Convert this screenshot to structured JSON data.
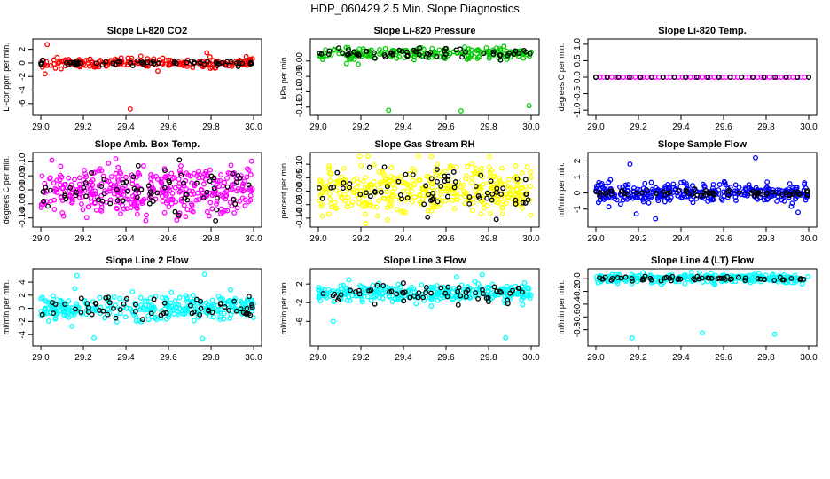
{
  "figure_title": "HDP_060429  2.5 Min. Slope Diagnostics",
  "colors": {
    "red": "#ff0000",
    "green": "#00cc00",
    "magenta": "#ff00ff",
    "yellow": "#ffff00",
    "blue": "#0000ff",
    "cyan": "#00ffff",
    "black": "#000000"
  },
  "chart_data": [
    {
      "type": "scatter",
      "title": "Slope Li-820 CO2",
      "ylabel": "Li-cor ppm per min.",
      "xlim": [
        29.0,
        30.0
      ],
      "xticks": [
        "29.0",
        "29.2",
        "29.4",
        "29.6",
        "29.8",
        "30.0"
      ],
      "ylim": [
        -7.2,
        3.0
      ],
      "yticks": [
        2,
        0,
        -2,
        -4,
        -6
      ],
      "ytick_labels": [
        "2",
        "0",
        "-2",
        "-4",
        "-6"
      ],
      "color": "red",
      "center": 0,
      "noise": 0.35,
      "n": 200,
      "black_n": 60,
      "black_noise": 0.2,
      "outliers": [
        [
          29.03,
          2.7
        ],
        [
          29.02,
          -1.6
        ],
        [
          29.42,
          -6.8
        ],
        [
          29.47,
          1.0
        ],
        [
          29.78,
          1.5
        ],
        [
          29.55,
          -1.2
        ]
      ]
    },
    {
      "type": "scatter",
      "title": "Slope Li-820 Pressure",
      "ylabel": "kPa per min.",
      "xlim": [
        29.0,
        30.0
      ],
      "xticks": [
        "29.0",
        "29.2",
        "29.4",
        "29.6",
        "29.8",
        "30.0"
      ],
      "ylim": [
        -0.165,
        0.06
      ],
      "yticks": [
        0,
        -0.05,
        -0.1,
        -0.15
      ],
      "ytick_labels": [
        "0.00",
        "-0.05",
        "-0.10",
        "-0.15"
      ],
      "color": "green",
      "center": 0.025,
      "noise": 0.01,
      "n": 200,
      "black_n": 60,
      "black_noise": 0.008,
      "outliers": [
        [
          29.33,
          -0.16
        ],
        [
          29.67,
          -0.162
        ],
        [
          29.99,
          -0.145
        ]
      ]
    },
    {
      "type": "scatter",
      "title": "Slope Li-820 Temp.",
      "ylabel": "degrees C per min.",
      "xlim": [
        29.0,
        30.0
      ],
      "xticks": [
        "29.0",
        "29.2",
        "29.4",
        "29.6",
        "29.8",
        "30.0"
      ],
      "ylim": [
        -1.05,
        1.05
      ],
      "yticks": [
        1,
        0.5,
        0,
        -0.5,
        -1
      ],
      "ytick_labels": [
        "1.0",
        "0.5",
        "0.0",
        "-0.5",
        "-1.0"
      ],
      "color": "magenta",
      "center": 0,
      "noise": 0,
      "n": 55,
      "black_n": 20,
      "black_noise": 0,
      "regular": true,
      "outliers": [
        [
          29.0,
          0
        ]
      ]
    },
    {
      "type": "scatter",
      "title": "Slope Amb. Box Temp.",
      "ylabel": "degrees C per min.",
      "xlim": [
        29.0,
        30.0
      ],
      "xticks": [
        "29.0",
        "29.2",
        "29.4",
        "29.6",
        "29.8",
        "30.0"
      ],
      "ylim": [
        -0.12,
        0.12
      ],
      "yticks": [
        0.1,
        0.05,
        0,
        -0.05,
        -0.1
      ],
      "ytick_labels": [
        "0.10",
        "0.05",
        "0.00",
        "-0.05",
        "-0.10"
      ],
      "color": "magenta",
      "center": 0,
      "noise": 0.045,
      "n": 380,
      "black_n": 70,
      "black_noise": 0.04,
      "outliers": []
    },
    {
      "type": "scatter",
      "title": "Slope Gas Stream RH",
      "ylabel": "percent per min.",
      "xlim": [
        29.0,
        30.0
      ],
      "xticks": [
        "29.0",
        "29.2",
        "29.4",
        "29.6",
        "29.8",
        "30.0"
      ],
      "ylim": [
        -0.12,
        0.13
      ],
      "yticks": [
        0.1,
        0.05,
        0,
        -0.05,
        -0.1
      ],
      "ytick_labels": [
        "0.10",
        "0.05",
        "0.00",
        "-0.05",
        "-0.10"
      ],
      "color": "yellow",
      "center": 0,
      "noise": 0.045,
      "n": 380,
      "black_n": 70,
      "black_noise": 0.04,
      "outliers": []
    },
    {
      "type": "scatter",
      "title": "Slope Sample Flow",
      "ylabel": "ml/min per min.",
      "xlim": [
        29.0,
        30.0
      ],
      "xticks": [
        "29.0",
        "29.2",
        "29.4",
        "29.6",
        "29.8",
        "30.0"
      ],
      "ylim": [
        -1.9,
        2.3
      ],
      "yticks": [
        2,
        1,
        0,
        -1
      ],
      "ytick_labels": [
        "2",
        "1",
        "0",
        "-1"
      ],
      "color": "blue",
      "center": 0,
      "noise": 0.3,
      "n": 320,
      "black_n": 70,
      "black_noise": 0.1,
      "outliers": [
        [
          29.16,
          1.8
        ],
        [
          29.75,
          2.2
        ],
        [
          29.28,
          -1.6
        ],
        [
          29.19,
          -1.3
        ],
        [
          29.95,
          -1.2
        ]
      ]
    },
    {
      "type": "scatter",
      "title": "Slope Line 2 Flow",
      "ylabel": "ml/min per min.",
      "xlim": [
        29.0,
        30.0
      ],
      "xticks": [
        "29.0",
        "29.2",
        "29.4",
        "29.6",
        "29.8",
        "30.0"
      ],
      "ylim": [
        -5.2,
        5.5
      ],
      "yticks": [
        4,
        2,
        0,
        -2,
        -4
      ],
      "ytick_labels": [
        "4",
        "2",
        "0",
        "-2",
        "-4"
      ],
      "color": "cyan",
      "center": 0,
      "noise": 0.9,
      "n": 300,
      "black_n": 60,
      "black_noise": 0.8,
      "outliers": [
        [
          29.17,
          5.0
        ],
        [
          29.77,
          5.2
        ],
        [
          29.25,
          -4.5
        ],
        [
          29.76,
          -4.6
        ],
        [
          29.16,
          3.0
        ]
      ]
    },
    {
      "type": "scatter",
      "title": "Slope Line 3 Flow",
      "ylabel": "ml/min per min.",
      "xlim": [
        29.0,
        30.0
      ],
      "xticks": [
        "29.0",
        "29.2",
        "29.4",
        "29.6",
        "29.8",
        "30.0"
      ],
      "ylim": [
        -10.5,
        4.5
      ],
      "yticks": [
        2,
        -2,
        -6
      ],
      "ytick_labels": [
        "2",
        "-2",
        "-6"
      ],
      "color": "cyan",
      "center": 0,
      "noise": 0.9,
      "n": 300,
      "black_n": 60,
      "black_noise": 1.0,
      "outliers": [
        [
          29.07,
          -6.0
        ],
        [
          29.65,
          3.5
        ],
        [
          29.88,
          -9.5
        ],
        [
          29.77,
          4.0
        ]
      ]
    },
    {
      "type": "scatter",
      "title": "Slope Line 4 (LT) Flow",
      "ylabel": "ml/min per min.",
      "xlim": [
        29.0,
        30.0
      ],
      "xticks": [
        "29.0",
        "29.2",
        "29.4",
        "29.6",
        "29.8",
        "30.0"
      ],
      "ylim": [
        -1.0,
        0.1
      ],
      "yticks": [
        0,
        -0.2,
        -0.4,
        -0.6,
        -0.8
      ],
      "ytick_labels": [
        "0.0",
        "-0.2",
        "-0.4",
        "-0.6",
        "-0.8"
      ],
      "color": "cyan",
      "center": 0,
      "noise": 0.035,
      "n": 260,
      "black_n": 60,
      "black_noise": 0.02,
      "outliers": [
        [
          29.17,
          -0.93
        ],
        [
          29.5,
          -0.85
        ],
        [
          29.84,
          -0.87
        ],
        [
          29.42,
          0.06
        ]
      ]
    }
  ]
}
